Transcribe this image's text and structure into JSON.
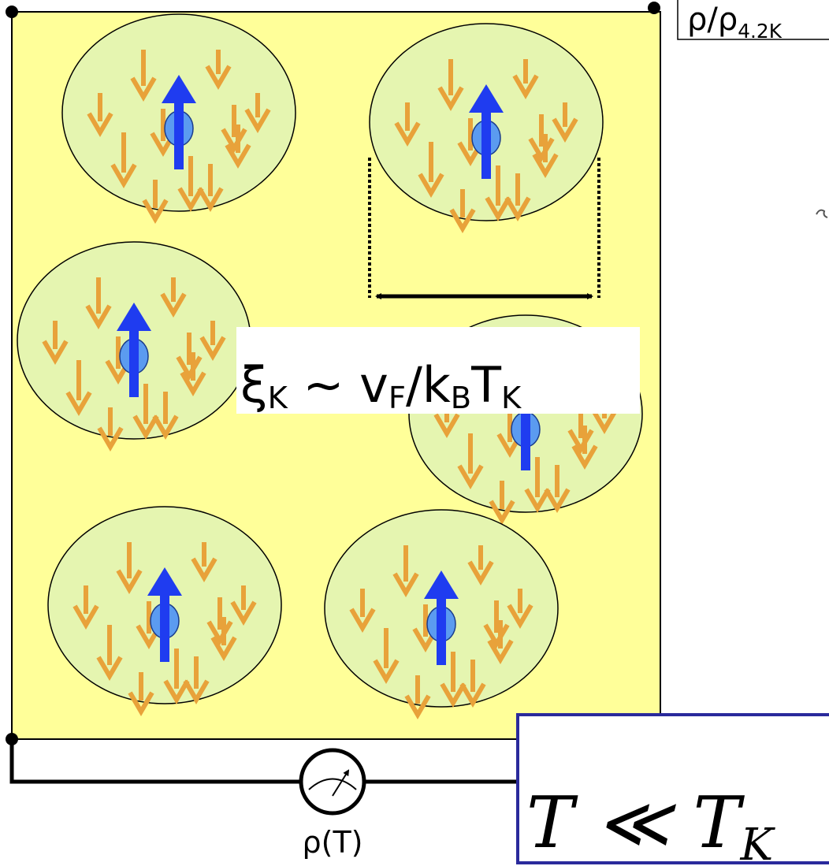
{
  "axis_label": {
    "main": "ρ/ρ",
    "sub": "4.2K"
  },
  "coherence_length": {
    "symbol": "ξ",
    "symbol_sub": "K",
    "relation": " ~ v",
    "v_sub": "F",
    "slash": "/k",
    "k_sub": "B",
    "t": "T",
    "t_sub": "K"
  },
  "meter_label": "ρ(T)",
  "condition": {
    "main": "T ≪ T",
    "sub": "K"
  }
}
